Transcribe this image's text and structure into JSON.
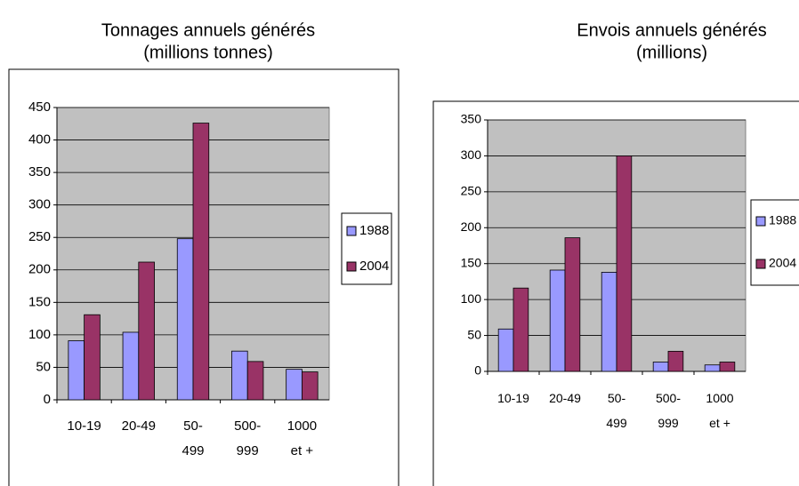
{
  "chart_data": [
    {
      "type": "bar",
      "title": "Tonnages annuels générés",
      "subtitle": "(millions tonnes)",
      "categories": [
        "10-19",
        "20-49",
        "50-499",
        "500-999",
        "1000 et +"
      ],
      "series": [
        {
          "name": "1988",
          "color": "#9999ff",
          "values": [
            91,
            104,
            248,
            75,
            47
          ]
        },
        {
          "name": "2004",
          "color": "#993366",
          "values": [
            131,
            212,
            426,
            59,
            43
          ]
        }
      ],
      "ylim": [
        0,
        450
      ],
      "yticks": [
        0,
        50,
        100,
        150,
        200,
        250,
        300,
        350,
        400,
        450
      ],
      "grid": true,
      "legend": "right",
      "plot_background": "#c0c0c0"
    },
    {
      "type": "bar",
      "title": "Envois annuels générés",
      "subtitle": "(millions)",
      "categories": [
        "10-19",
        "20-49",
        "50-499",
        "500-999",
        "1000 et +"
      ],
      "series": [
        {
          "name": "1988",
          "color": "#9999ff",
          "values": [
            59,
            141,
            138,
            13,
            9
          ]
        },
        {
          "name": "2004",
          "color": "#993366",
          "values": [
            116,
            186,
            300,
            28,
            13
          ]
        }
      ],
      "ylim": [
        0,
        350
      ],
      "yticks": [
        0,
        50,
        100,
        150,
        200,
        250,
        300,
        350
      ],
      "grid": true,
      "legend": "right",
      "plot_background": "#c0c0c0"
    }
  ]
}
